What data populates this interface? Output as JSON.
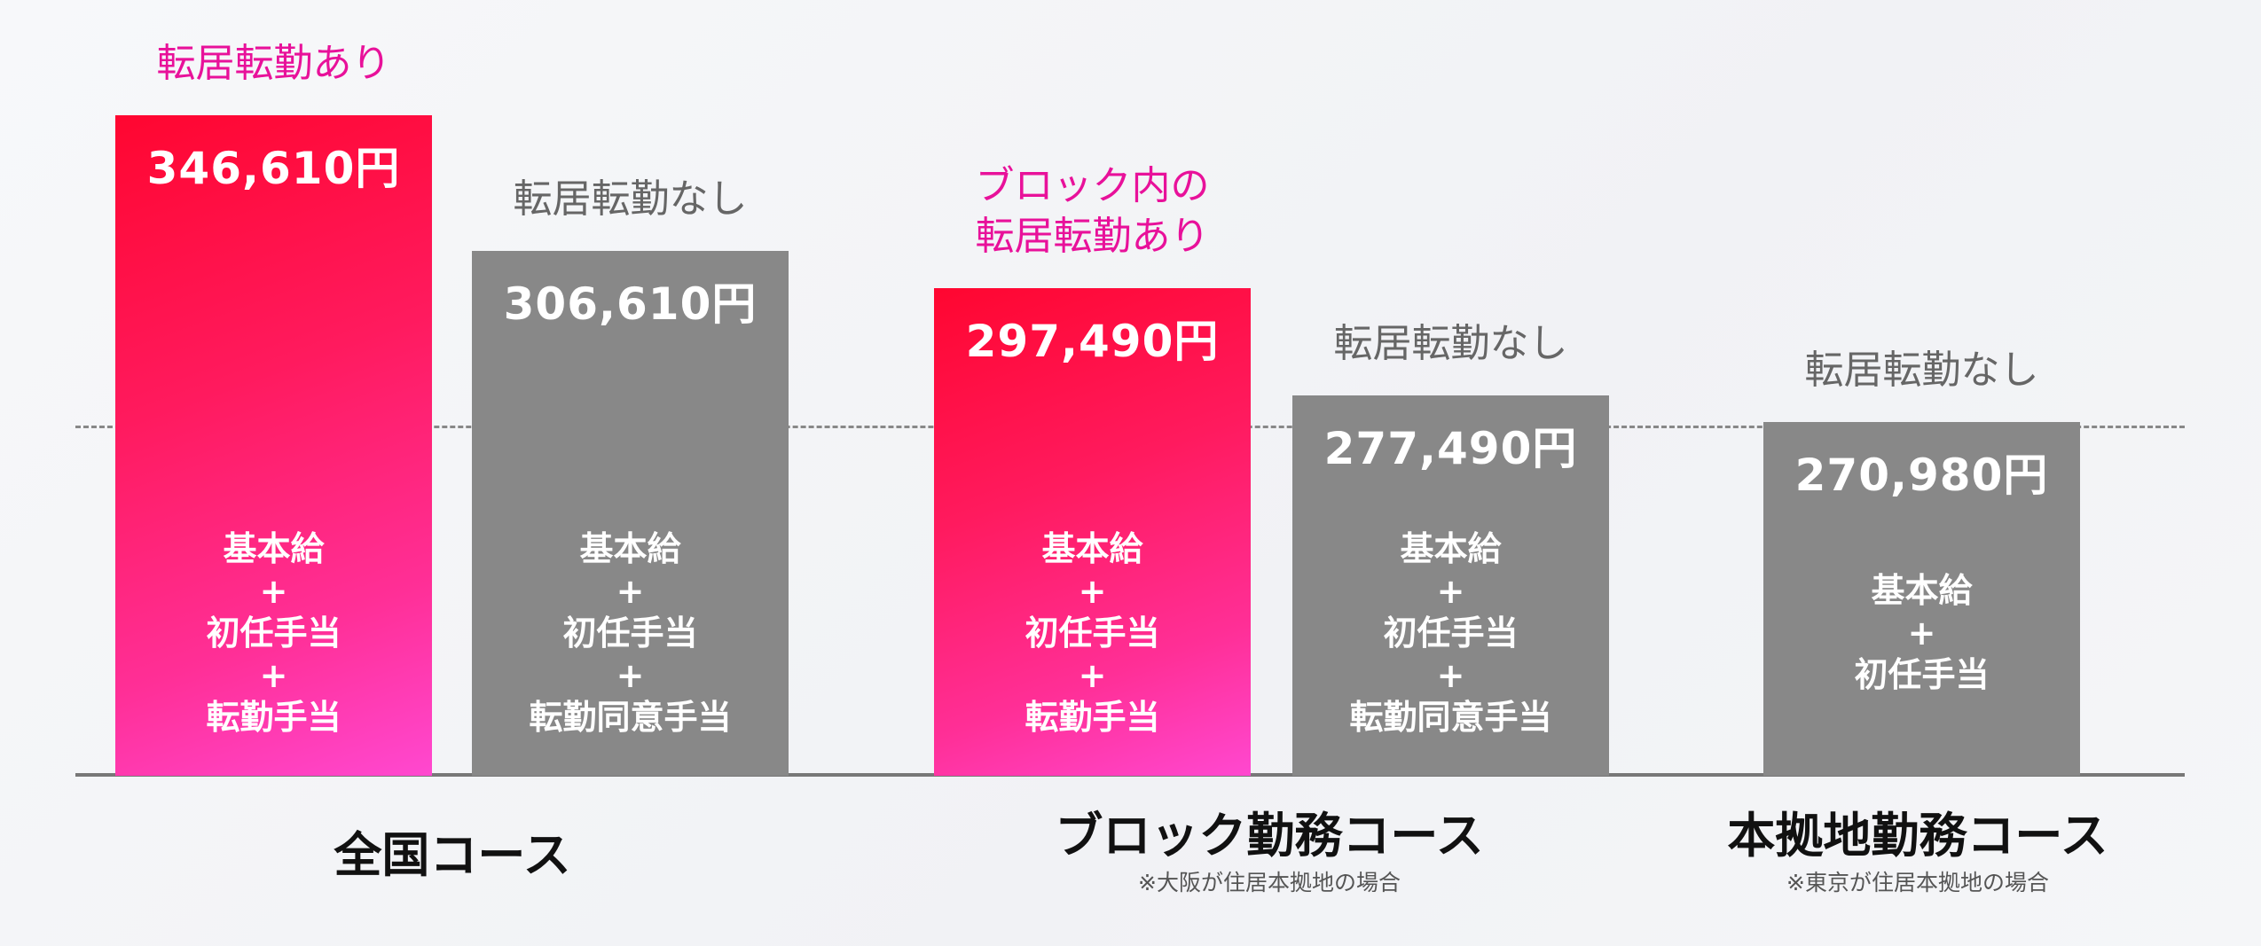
{
  "chart_data": {
    "type": "bar",
    "unit": "円",
    "bars": [
      {
        "course": "全国コース",
        "tag": "転居転勤あり",
        "tag_lines": [
          "転居転勤あり"
        ],
        "value": 346610,
        "value_label": "346,610円",
        "highlight": true,
        "components": [
          "基本給",
          "+",
          "初任手当",
          "+",
          "転勤手当"
        ]
      },
      {
        "course": "全国コース",
        "tag": "転居転勤なし",
        "tag_lines": [
          "転居転勤なし"
        ],
        "value": 306610,
        "value_label": "306,610円",
        "highlight": false,
        "components": [
          "基本給",
          "+",
          "初任手当",
          "+",
          "転勤同意手当"
        ]
      },
      {
        "course": "ブロック勤務コース",
        "tag": "ブロック内の転居転勤あり",
        "tag_lines": [
          "ブロック内の",
          "転居転勤あり"
        ],
        "value": 297490,
        "value_label": "297,490円",
        "highlight": true,
        "components": [
          "基本給",
          "+",
          "初任手当",
          "+",
          "転勤手当"
        ]
      },
      {
        "course": "ブロック勤務コース",
        "tag": "転居転勤なし",
        "tag_lines": [
          "転居転勤なし"
        ],
        "value": 277490,
        "value_label": "277,490円",
        "highlight": false,
        "components": [
          "基本給",
          "+",
          "初任手当",
          "+",
          "転勤同意手当"
        ]
      },
      {
        "course": "本拠地勤務コース",
        "tag": "転居転勤なし",
        "tag_lines": [
          "転居転勤なし"
        ],
        "value": 270980,
        "value_label": "270,980円",
        "highlight": false,
        "components": [
          "基本給",
          "+",
          "初任手当"
        ]
      }
    ],
    "courses": [
      {
        "label": "全国コース",
        "note": ""
      },
      {
        "label": "ブロック勤務コース",
        "note": "※大阪が住居本拠地の場合"
      },
      {
        "label": "本拠地勤務コース",
        "note": "※東京が住居本拠地の場合"
      }
    ],
    "reference_line": "dashed",
    "grid": false,
    "colors": {
      "highlight_start": "#ff0630",
      "highlight_end": "#ff48d0",
      "highlight_label": "#e8119a",
      "normal": "#888888",
      "normal_label": "#666666"
    }
  }
}
